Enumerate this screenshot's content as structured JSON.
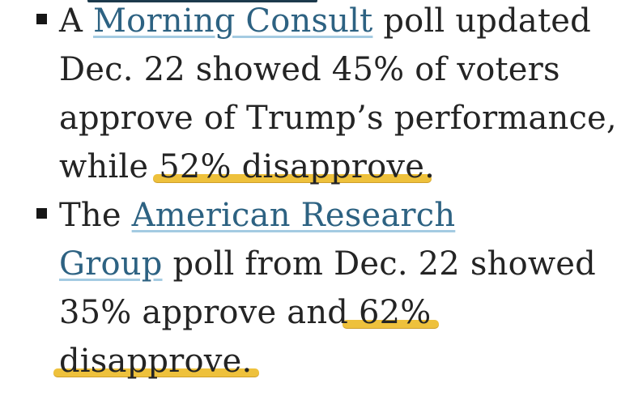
{
  "page": {
    "background_color": "#ffffff",
    "text_color": "#242424",
    "link_color": "#2d6282",
    "link_underline_color": "#a4cbe2",
    "highlight_color": "#eec13c",
    "bullet_color": "#161616",
    "remnant_color": "#1c3a4c"
  },
  "list": {
    "items": [
      {
        "lines": [
          {
            "segments": [
              {
                "text": "A ",
                "style": "plain"
              },
              {
                "text": "Morning Consult",
                "style": "link"
              },
              {
                "text": " poll updated",
                "style": "plain"
              }
            ]
          },
          {
            "segments": [
              {
                "text": "Dec. 22 showed 45% of voters",
                "style": "plain"
              }
            ]
          },
          {
            "segments": [
              {
                "text": "approve of Trump’s performance,",
                "style": "plain"
              }
            ]
          },
          {
            "segments": [
              {
                "text": "while ",
                "style": "plain"
              },
              {
                "text": "52% disapprove",
                "style": "highlight"
              },
              {
                "text": ".",
                "style": "plain"
              }
            ]
          }
        ]
      },
      {
        "lines": [
          {
            "segments": [
              {
                "text": "The ",
                "style": "plain"
              },
              {
                "text": "American Research",
                "style": "link"
              }
            ]
          },
          {
            "segments": [
              {
                "text": "Group",
                "style": "link"
              },
              {
                "text": " poll from Dec. 22 showed",
                "style": "plain"
              }
            ]
          },
          {
            "segments": [
              {
                "text": "35% approve and",
                "style": "plain"
              },
              {
                "text": " 62%",
                "style": "highlight"
              }
            ]
          },
          {
            "segments": [
              {
                "text": "disapprove.",
                "style": "highlight"
              }
            ]
          }
        ]
      }
    ]
  }
}
